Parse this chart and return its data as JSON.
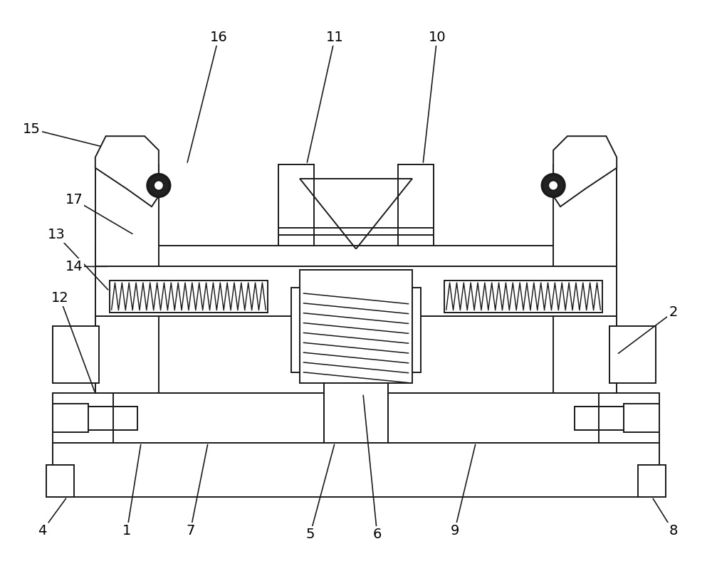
{
  "bg_color": "#ffffff",
  "line_color": "#1a1a1a",
  "line_width": 1.4,
  "fig_width": 10.0,
  "fig_height": 8.09
}
